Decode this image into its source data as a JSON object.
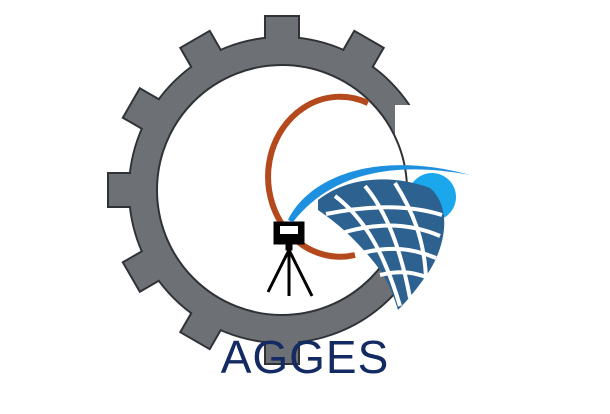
{
  "logo": {
    "name": "AGGES",
    "wordmark": "AGGES",
    "colors": {
      "gear": "#6d7075",
      "gear_outline": "#2f3236",
      "arc": "#b4491d",
      "globe_dark": "#2d6290",
      "globe_light": "#1aa7ec",
      "swoosh": "#1f8fe0",
      "tripod": "#000000",
      "text": "#142a63"
    },
    "icons": [
      "gear-icon",
      "tripod-survey-instrument-icon",
      "globe-icon",
      "swoosh-icon"
    ]
  }
}
